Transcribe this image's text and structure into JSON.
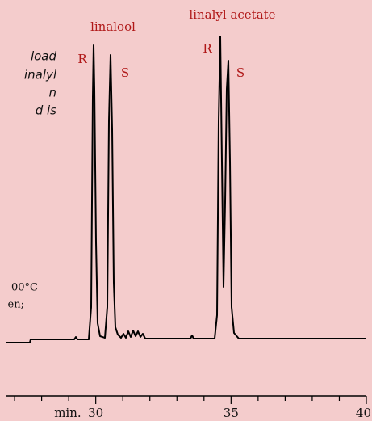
{
  "chart_data": {
    "type": "chromatogram",
    "notes": [
      "load",
      "inalyl",
      "n",
      "d is"
    ],
    "conditions": [
      "00°C",
      "en;"
    ],
    "peak_groups": [
      {
        "name": "linalool",
        "peaks": [
          "R",
          "S"
        ]
      },
      {
        "name": "linalyl acetate",
        "peaks": [
          "R",
          "S"
        ]
      }
    ],
    "xlabel": "min.",
    "xlim": [
      26.7,
      40
    ],
    "xticks": [
      30,
      35,
      40
    ],
    "minor_xticks": [
      27,
      28,
      29,
      31,
      32,
      33,
      34,
      36,
      37,
      38,
      39
    ]
  }
}
